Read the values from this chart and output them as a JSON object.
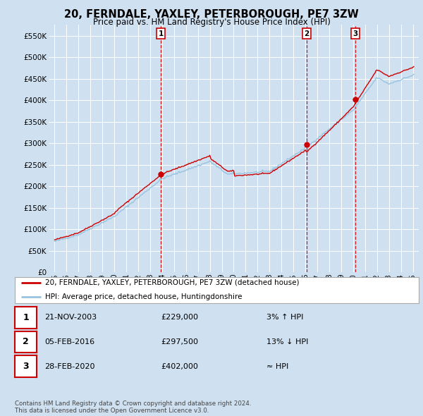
{
  "title": "20, FERNDALE, YAXLEY, PETERBOROUGH, PE7 3ZW",
  "subtitle": "Price paid vs. HM Land Registry's House Price Index (HPI)",
  "background_color": "#cfe0f0",
  "plot_bg_color": "#cfe0f0",
  "legend_line1": "20, FERNDALE, YAXLEY, PETERBOROUGH, PE7 3ZW (detached house)",
  "legend_line2": "HPI: Average price, detached house, Huntingdonshire",
  "sale_color": "#cc0000",
  "hpi_color": "#99c4e0",
  "sale_dot_color": "#cc0000",
  "vline_color": "#cc0000",
  "grid_color": "#ffffff",
  "transactions": [
    {
      "date": 2003.9,
      "price": 229000,
      "label": "1"
    },
    {
      "date": 2016.1,
      "price": 297500,
      "label": "2"
    },
    {
      "date": 2020.2,
      "price": 402000,
      "label": "3"
    }
  ],
  "table_rows": [
    {
      "num": "1",
      "date": "21-NOV-2003",
      "price": "£229,000",
      "change": "3% ↑ HPI"
    },
    {
      "num": "2",
      "date": "05-FEB-2016",
      "price": "£297,500",
      "change": "13% ↓ HPI"
    },
    {
      "num": "3",
      "date": "28-FEB-2020",
      "price": "£402,000",
      "change": "≈ HPI"
    }
  ],
  "footer": "Contains HM Land Registry data © Crown copyright and database right 2024.\nThis data is licensed under the Open Government Licence v3.0.",
  "ylim": [
    0,
    575000
  ],
  "yticks": [
    0,
    50000,
    100000,
    150000,
    200000,
    250000,
    300000,
    350000,
    400000,
    450000,
    500000,
    550000
  ],
  "xlim_start": 1994.5,
  "xlim_end": 2025.5,
  "xticks": [
    1995,
    1996,
    1997,
    1998,
    1999,
    2000,
    2001,
    2002,
    2003,
    2004,
    2005,
    2006,
    2007,
    2008,
    2009,
    2010,
    2011,
    2012,
    2013,
    2014,
    2015,
    2016,
    2017,
    2018,
    2019,
    2020,
    2021,
    2022,
    2023,
    2024,
    2025
  ]
}
